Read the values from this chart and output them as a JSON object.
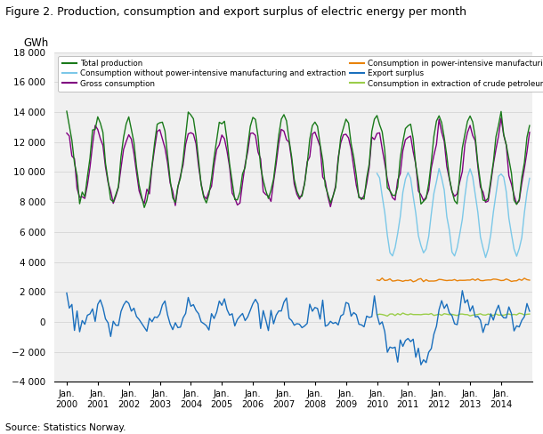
{
  "title": "Figure 2. Production, consumption and export surplus of electric energy per month",
  "ylabel": "GWh",
  "source": "Source: Statistics Norway.",
  "ylim": [
    -4000,
    18000
  ],
  "yticks": [
    -4000,
    -2000,
    0,
    2000,
    4000,
    6000,
    8000,
    10000,
    12000,
    14000,
    16000,
    18000
  ],
  "colors": {
    "total_production": "#1a7a1a",
    "gross_consumption": "#800080",
    "export_surplus": "#1a6fbd",
    "consumption_no_power": "#7bc8e8",
    "consumption_power_manuf": "#e8820a",
    "consumption_extraction": "#9acd4a"
  },
  "background_color": "#f0f0f0"
}
